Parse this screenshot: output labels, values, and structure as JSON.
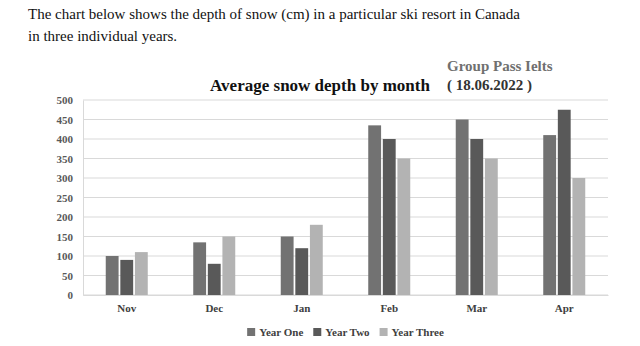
{
  "chart_data": {
    "type": "bar",
    "title": "Average snow depth by month",
    "annotations": [
      "The chart below shows the depth of snow (cm) in a particular ski resort in Canada",
      "in three individual years.",
      "Group Pass Ielts",
      "( 18.06.2022 )"
    ],
    "categories": [
      "Nov",
      "Dec",
      "Jan",
      "Feb",
      "Mar",
      "Apr"
    ],
    "series": [
      {
        "name": "Year One",
        "color": "#727272",
        "values": [
          100,
          135,
          150,
          435,
          450,
          410
        ]
      },
      {
        "name": "Year Two",
        "color": "#595959",
        "values": [
          90,
          80,
          120,
          400,
          400,
          475
        ]
      },
      {
        "name": "Year Three",
        "color": "#b3b3b3",
        "values": [
          110,
          150,
          180,
          350,
          350,
          300
        ]
      }
    ],
    "ylim": [
      0,
      500
    ],
    "yticks": [
      0,
      50,
      100,
      150,
      200,
      250,
      300,
      350,
      400,
      450,
      500
    ],
    "grid": true,
    "legend": "bottom"
  }
}
